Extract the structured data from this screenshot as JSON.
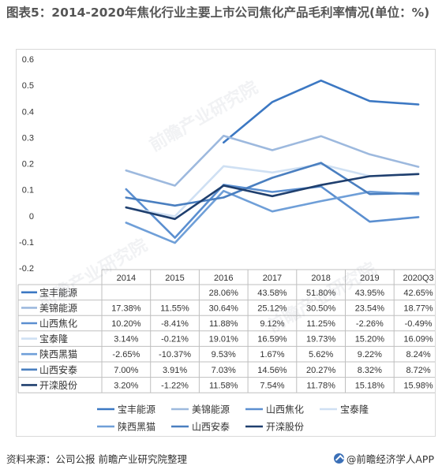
{
  "title": "图表5：2014-2020年焦化行业主要上市公司焦化产品毛利率情况(单位：%)",
  "source": "资料来源：公司公报 前瞻产业研究院整理",
  "brand": "@前瞻经济学人APP",
  "watermark": "前瞻产业研究院",
  "chart_data": {
    "type": "line",
    "categories": [
      "2014",
      "2015",
      "2016",
      "2017",
      "2018",
      "2019",
      "2020Q3"
    ],
    "ylim": [
      -0.2,
      0.6
    ],
    "yticks": [
      "0.6",
      "0.5",
      "0.4",
      "0.3",
      "0.2",
      "0.1",
      "0",
      "-0.1",
      "-0.2"
    ],
    "ytick_values": [
      0.6,
      0.5,
      0.4,
      0.3,
      0.2,
      0.1,
      0,
      -0.1,
      -0.2
    ],
    "grid": false,
    "legend_position": "bottom",
    "series": [
      {
        "name": "宝丰能源",
        "color": "#3c78c3",
        "values": [
          null,
          null,
          0.2806,
          0.4358,
          0.518,
          0.4395,
          0.4265
        ],
        "labels": [
          "",
          "",
          "28.06%",
          "43.58%",
          "51.80%",
          "43.95%",
          "42.65%"
        ]
      },
      {
        "name": "美锦能源",
        "color": "#9db9de",
        "values": [
          0.1738,
          0.1155,
          0.3064,
          0.2512,
          0.305,
          0.2354,
          0.1877
        ],
        "labels": [
          "17.38%",
          "11.55%",
          "30.64%",
          "25.12%",
          "30.50%",
          "23.54%",
          "18.77%"
        ]
      },
      {
        "name": "山西焦化",
        "color": "#5b8fd0",
        "values": [
          0.102,
          -0.0841,
          0.1188,
          0.0912,
          0.1125,
          -0.0226,
          -0.0049
        ],
        "labels": [
          "10.20%",
          "-8.41%",
          "11.88%",
          "9.12%",
          "11.25%",
          "-2.26%",
          "-0.49%"
        ]
      },
      {
        "name": "宝泰隆",
        "color": "#cfe0f3",
        "values": [
          0.0314,
          -0.0021,
          0.1901,
          0.1659,
          0.1973,
          0.152,
          0.1609
        ],
        "labels": [
          "3.14%",
          "-0.21%",
          "19.01%",
          "16.59%",
          "19.73%",
          "15.20%",
          "16.09%"
        ]
      },
      {
        "name": "陕西黑猫",
        "color": "#6f9fd8",
        "values": [
          -0.0265,
          -0.1037,
          0.0953,
          0.0167,
          0.0562,
          0.0922,
          0.0824
        ],
        "labels": [
          "-2.65%",
          "-10.37%",
          "9.53%",
          "1.67%",
          "5.62%",
          "9.22%",
          "8.24%"
        ]
      },
      {
        "name": "山西安泰",
        "color": "#4a7fc0",
        "values": [
          0.07,
          0.0391,
          0.0703,
          0.1456,
          0.2027,
          0.0832,
          0.0872
        ],
        "labels": [
          "7.00%",
          "3.91%",
          "7.03%",
          "14.56%",
          "20.27%",
          "8.32%",
          "8.72%"
        ]
      },
      {
        "name": "开滦股份",
        "color": "#1f3f6e",
        "values": [
          0.032,
          -0.0122,
          0.1158,
          0.0754,
          0.1178,
          0.1518,
          0.1598
        ],
        "labels": [
          "3.20%",
          "-1.22%",
          "11.58%",
          "7.54%",
          "11.78%",
          "15.18%",
          "15.98%"
        ]
      }
    ]
  }
}
